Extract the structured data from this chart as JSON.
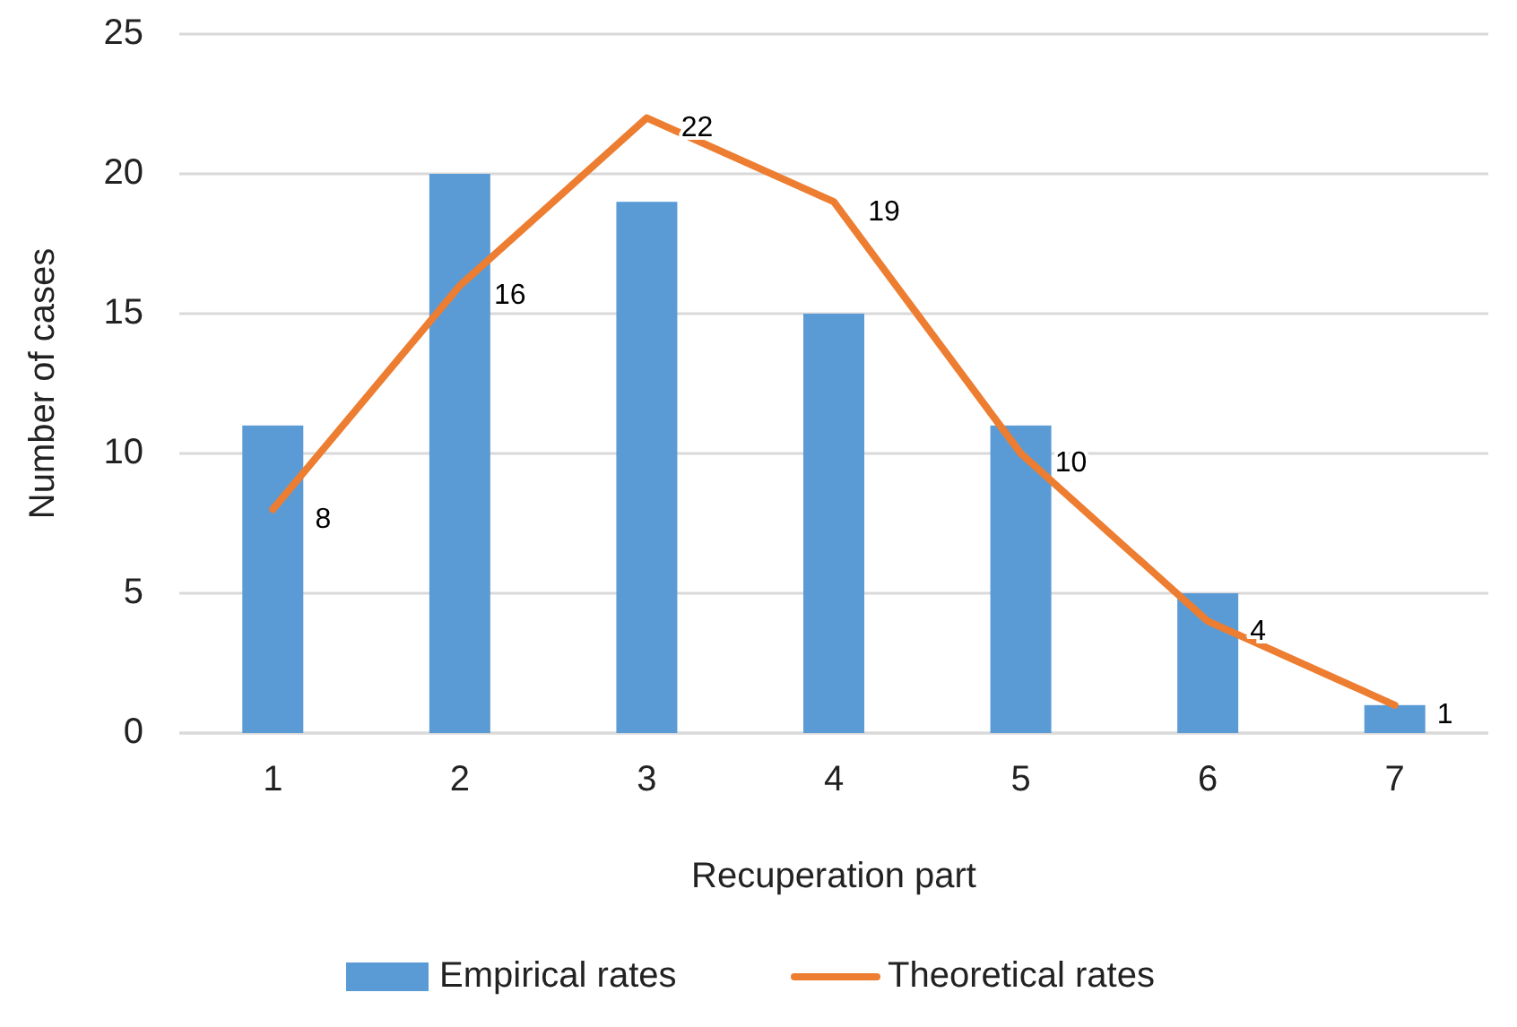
{
  "chart_data": {
    "type": "bar",
    "xlabel": "Recuperation part",
    "ylabel": "Number of cases",
    "categories": [
      "1",
      "2",
      "3",
      "4",
      "5",
      "6",
      "7"
    ],
    "series": [
      {
        "name": "Empirical rates",
        "color": "#5b9bd5",
        "values": [
          11,
          20,
          19,
          15,
          11,
          5,
          1
        ]
      },
      {
        "name": "Theoretical rates",
        "type": "line",
        "color": "#ed7d31",
        "values": [
          8,
          16,
          22,
          19,
          10,
          4,
          1
        ],
        "value_labels": [
          "8",
          "16",
          "22",
          "19",
          "10",
          "4",
          "1"
        ]
      }
    ],
    "ylim": [
      0,
      25
    ],
    "yticks": [
      0,
      5,
      10,
      15,
      20,
      25
    ],
    "grid": "y",
    "legend": "bottom",
    "marker": "none",
    "line_style": "solid"
  }
}
